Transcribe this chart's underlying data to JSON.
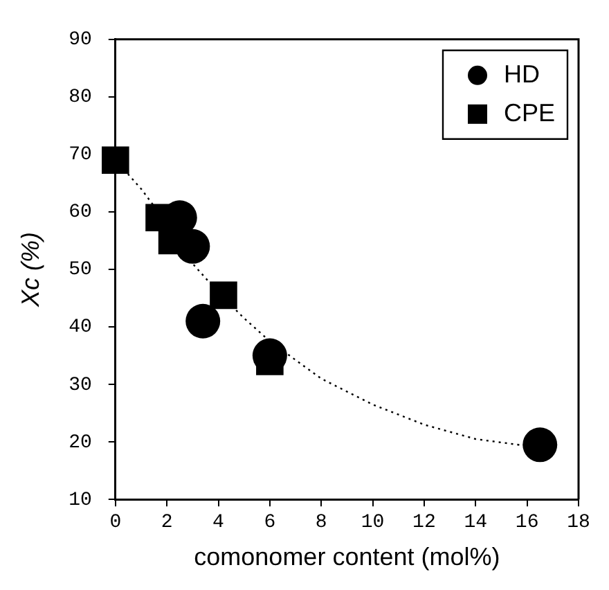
{
  "chart_data": {
    "type": "scatter",
    "xlabel": "comonomer content (mol%)",
    "ylabel": "Xc (%)",
    "xlim": [
      0,
      18
    ],
    "xticks": [
      0,
      2,
      4,
      6,
      8,
      10,
      12,
      14,
      16,
      18
    ],
    "ylim": [
      10,
      90
    ],
    "yticks": [
      10,
      20,
      30,
      40,
      50,
      60,
      70,
      80,
      90
    ],
    "grid": false,
    "legend": "top right",
    "series": [
      {
        "type": "line",
        "color": "#000000",
        "line_style": "dotted",
        "marker": "none",
        "x": [
          0,
          1,
          2,
          3,
          4,
          5,
          6,
          8,
          10,
          12,
          14,
          16.5
        ],
        "values": [
          69,
          64,
          58,
          51,
          46,
          41.5,
          37.5,
          31,
          26.5,
          23,
          20.5,
          19
        ]
      },
      {
        "name": "HD",
        "color": "#000000",
        "marker": "circle",
        "x": [
          2.5,
          3,
          3.4,
          6,
          16.5
        ],
        "values": [
          59,
          54,
          41,
          35,
          19.5
        ]
      },
      {
        "name": "CPE",
        "color": "#000000",
        "marker": "square",
        "x": [
          0,
          1.7,
          2.2,
          4.2,
          6
        ],
        "values": [
          69,
          59,
          55,
          45.5,
          34
        ]
      }
    ]
  }
}
